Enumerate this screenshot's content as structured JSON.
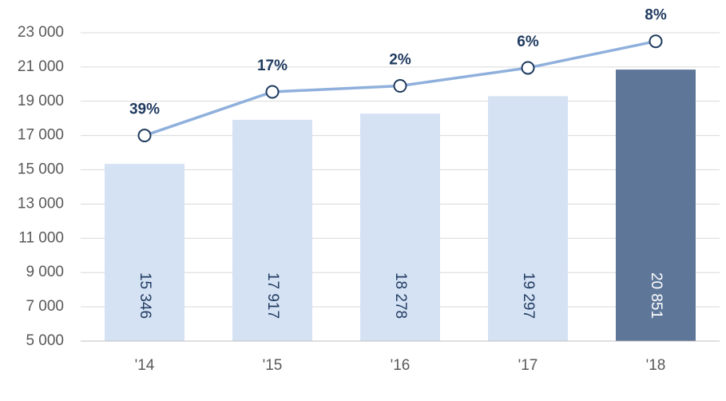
{
  "chart_data": {
    "type": "bar",
    "categories": [
      "'14",
      "'15",
      "'16",
      "'17",
      "'18"
    ],
    "values": [
      15346,
      17917,
      18278,
      19297,
      20851
    ],
    "value_labels": [
      "15 346",
      "17 917",
      "18 278",
      "19 297",
      "20 851"
    ],
    "colors": [
      "#d5e2f4",
      "#d5e2f4",
      "#d5e2f4",
      "#d5e2f4",
      "#5e7799"
    ],
    "value_label_colors": [
      "#1f3a5f",
      "#1f3a5f",
      "#1f3a5f",
      "#1f3a5f",
      "#ffffff"
    ],
    "line": {
      "type": "line",
      "color": "#8fb0dc",
      "values": [
        17000,
        19550,
        19900,
        20950,
        22500
      ],
      "annotations": [
        "39%",
        "17%",
        "2%",
        "6%",
        "8%"
      ]
    },
    "ylim": [
      5000,
      23000
    ],
    "yticks": [
      {
        "value": 5000,
        "label": "5 000"
      },
      {
        "value": 7000,
        "label": "7 000"
      },
      {
        "value": 9000,
        "label": "9 000"
      },
      {
        "value": 11000,
        "label": "11 000"
      },
      {
        "value": 13000,
        "label": "13 000"
      },
      {
        "value": 15000,
        "label": "15 000"
      },
      {
        "value": 17000,
        "label": "17 000"
      },
      {
        "value": 19000,
        "label": "19 000"
      },
      {
        "value": 21000,
        "label": "21 000"
      },
      {
        "value": 23000,
        "label": "23 000"
      }
    ],
    "grid": true
  }
}
